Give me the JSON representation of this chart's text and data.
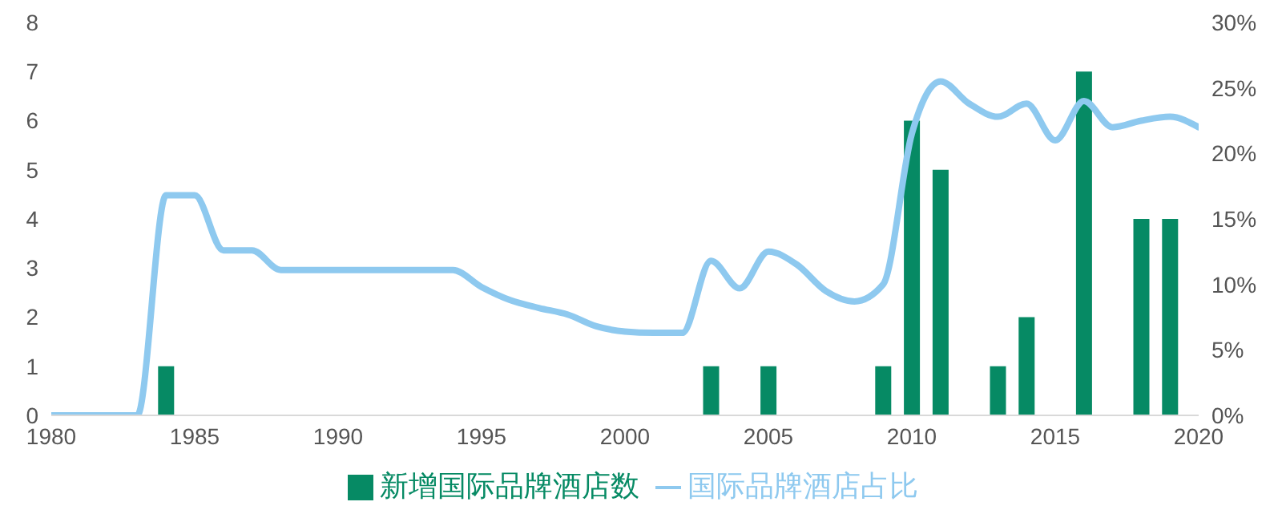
{
  "chart_data": {
    "type": "bar",
    "x": [
      1980,
      1981,
      1982,
      1983,
      1984,
      1985,
      1986,
      1987,
      1988,
      1989,
      1990,
      1991,
      1992,
      1993,
      1994,
      1995,
      1996,
      1997,
      1998,
      1999,
      2000,
      2001,
      2002,
      2003,
      2004,
      2005,
      2006,
      2007,
      2008,
      2009,
      2010,
      2011,
      2012,
      2013,
      2014,
      2015,
      2016,
      2017,
      2018,
      2019,
      2020
    ],
    "series": [
      {
        "name": "新增国际品牌酒店数",
        "color": "#068a64",
        "values": [
          null,
          null,
          null,
          null,
          1,
          null,
          null,
          null,
          null,
          null,
          null,
          null,
          null,
          null,
          null,
          null,
          null,
          null,
          null,
          null,
          null,
          null,
          null,
          1,
          null,
          1,
          null,
          null,
          null,
          1,
          6,
          5,
          null,
          1,
          2,
          null,
          7,
          null,
          4,
          4,
          null
        ]
      },
      {
        "name": "国际品牌酒店占比",
        "type": "line",
        "axis": "y2",
        "color": "#8ec9ef",
        "values": [
          0,
          0,
          0,
          0,
          16.8,
          16.8,
          12.6,
          12.6,
          11.1,
          11.1,
          11.1,
          11.1,
          11.1,
          11.1,
          11.1,
          9.8,
          8.8,
          8.2,
          7.7,
          6.8,
          6.4,
          6.3,
          6.3,
          11.8,
          9.7,
          12.5,
          11.5,
          9.5,
          8.7,
          10,
          21.5,
          25.5,
          23.8,
          22.8,
          23.8,
          21,
          24,
          22,
          22.5,
          22.8,
          22
        ]
      }
    ],
    "xlim": [
      1980,
      2020
    ],
    "xticks": [
      1980,
      1985,
      1990,
      1995,
      2000,
      2005,
      2010,
      2015,
      2020
    ],
    "ylim": [
      0,
      8
    ],
    "yticks": [
      0,
      1,
      2,
      3,
      4,
      5,
      6,
      7,
      8
    ],
    "y2lim": [
      0,
      30
    ],
    "y2ticks": [
      {
        "value": 0,
        "label": "0%"
      },
      {
        "value": 5,
        "label": "5%"
      },
      {
        "value": 10,
        "label": "10%"
      },
      {
        "value": 15,
        "label": "15%"
      },
      {
        "value": 20,
        "label": "20%"
      },
      {
        "value": 25,
        "label": "25%"
      },
      {
        "value": 30,
        "label": "30%"
      }
    ],
    "grid": false,
    "legend": "bottom",
    "marker": "none",
    "line_style": "solid"
  }
}
